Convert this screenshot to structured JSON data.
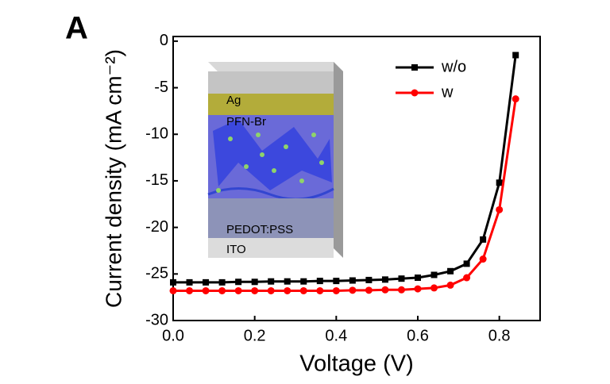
{
  "chart_data": {
    "type": "line",
    "panel_label": "A",
    "xlabel": "Voltage (V)",
    "ylabel": "Current density (mA cm⁻²)",
    "x": [
      0,
      0.04,
      0.08,
      0.12,
      0.16,
      0.2,
      0.24,
      0.28,
      0.32,
      0.36,
      0.4,
      0.44,
      0.48,
      0.52,
      0.56,
      0.6,
      0.64,
      0.68,
      0.72,
      0.76,
      0.8,
      0.84
    ],
    "series": [
      {
        "name": "w/o",
        "color": "#000000",
        "marker": "square",
        "values": [
          -25.9,
          -25.9,
          -25.9,
          -25.9,
          -25.85,
          -25.85,
          -25.8,
          -25.8,
          -25.8,
          -25.75,
          -25.75,
          -25.7,
          -25.65,
          -25.6,
          -25.5,
          -25.4,
          -25.1,
          -24.7,
          -23.9,
          -21.3,
          -15.2,
          -1.5
        ]
      },
      {
        "name": "w",
        "color": "#ff0000",
        "marker": "circle",
        "values": [
          -26.8,
          -26.8,
          -26.8,
          -26.8,
          -26.8,
          -26.8,
          -26.8,
          -26.8,
          -26.8,
          -26.8,
          -26.8,
          -26.75,
          -26.75,
          -26.7,
          -26.7,
          -26.6,
          -26.5,
          -26.2,
          -25.4,
          -23.4,
          -18.1,
          -6.2
        ]
      }
    ],
    "xlim": [
      0,
      0.9
    ],
    "ylim": [
      -30,
      0.5
    ],
    "xticks": [
      {
        "value": 0,
        "label": "0.0"
      },
      0.2,
      0.4,
      0.6,
      0.8
    ],
    "yticks": [
      0,
      -5,
      -10,
      -15,
      -20,
      -25,
      -30
    ],
    "legend": "upper right",
    "inset_layers": [
      "Ag",
      "PFN-Br",
      "PEDOT:PSS",
      "ITO"
    ]
  }
}
